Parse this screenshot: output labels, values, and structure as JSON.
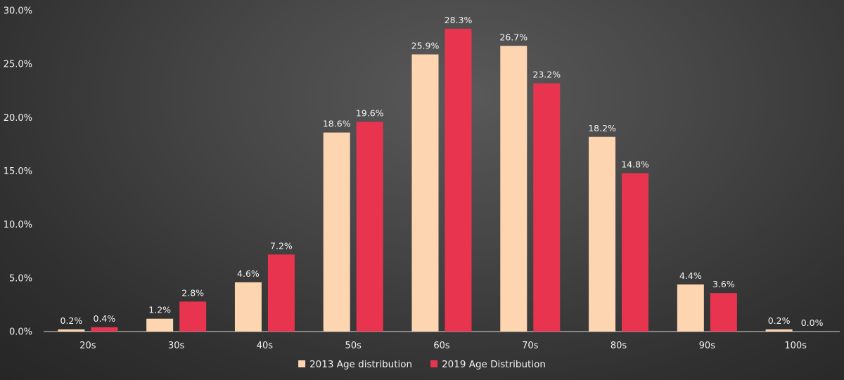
{
  "chart_data": {
    "type": "bar",
    "title": "",
    "xlabel": "",
    "ylabel": "",
    "categories": [
      "20s",
      "30s",
      "40s",
      "50s",
      "60s",
      "70s",
      "80s",
      "90s",
      "100s"
    ],
    "series": [
      {
        "name": "2013 Age distribution",
        "color": "#fdd5b1",
        "values": [
          0.2,
          1.2,
          4.6,
          18.6,
          25.9,
          26.7,
          18.2,
          4.4,
          0.2
        ],
        "labels": [
          "0.2%",
          "1.2%",
          "4.6%",
          "18.6%",
          "25.9%",
          "26.7%",
          "18.2%",
          "4.4%",
          "0.2%"
        ]
      },
      {
        "name": "2019 Age Distribution",
        "color": "#e8344f",
        "values": [
          0.4,
          2.8,
          7.2,
          19.6,
          28.3,
          23.2,
          14.8,
          3.6,
          0.0
        ],
        "labels": [
          "0.4%",
          "2.8%",
          "7.2%",
          "19.6%",
          "28.3%",
          "23.2%",
          "14.8%",
          "3.6%",
          "0.0%"
        ]
      }
    ],
    "ylim": [
      0,
      30
    ],
    "yticks": [
      0,
      5,
      10,
      15,
      20,
      25,
      30
    ],
    "ytick_labels": [
      "0.0%",
      "5.0%",
      "10.0%",
      "15.0%",
      "20.0%",
      "25.0%",
      "30.0%"
    ],
    "grid": false,
    "legend_position": "bottom-center",
    "axis_color": "#d9d9d9",
    "background": "#3f3f3f"
  }
}
